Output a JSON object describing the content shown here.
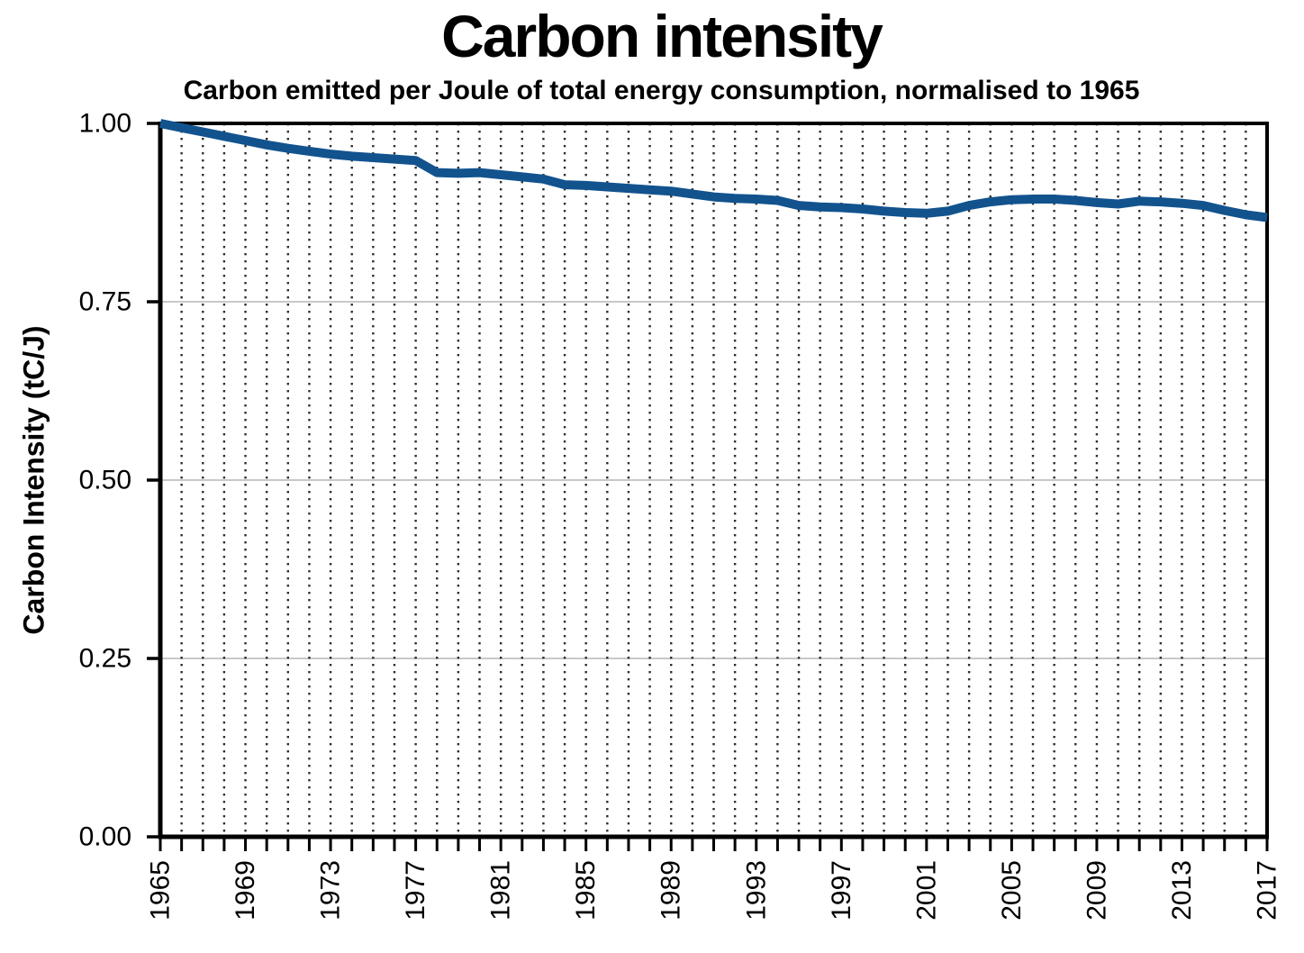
{
  "chart_data": {
    "type": "line",
    "title": "Carbon intensity",
    "subtitle": "Carbon emitted per Joule of total energy consumption, normalised to 1965",
    "xlabel": "",
    "ylabel": "Carbon Intensity (tC/J)",
    "x": [
      1965,
      1966,
      1967,
      1968,
      1969,
      1970,
      1971,
      1972,
      1973,
      1974,
      1975,
      1976,
      1977,
      1978,
      1979,
      1980,
      1981,
      1982,
      1983,
      1984,
      1985,
      1986,
      1987,
      1988,
      1989,
      1990,
      1991,
      1992,
      1993,
      1994,
      1995,
      1996,
      1997,
      1998,
      1999,
      2000,
      2001,
      2002,
      2003,
      2004,
      2005,
      2006,
      2007,
      2008,
      2009,
      2010,
      2011,
      2012,
      2013,
      2014,
      2015,
      2016,
      2017
    ],
    "values": [
      1.0,
      0.994,
      0.988,
      0.982,
      0.976,
      0.97,
      0.965,
      0.961,
      0.957,
      0.954,
      0.952,
      0.95,
      0.948,
      0.931,
      0.93,
      0.931,
      0.928,
      0.925,
      0.922,
      0.914,
      0.913,
      0.911,
      0.909,
      0.907,
      0.905,
      0.901,
      0.897,
      0.895,
      0.894,
      0.892,
      0.885,
      0.883,
      0.882,
      0.88,
      0.877,
      0.875,
      0.874,
      0.877,
      0.885,
      0.89,
      0.893,
      0.894,
      0.894,
      0.892,
      0.889,
      0.887,
      0.891,
      0.89,
      0.888,
      0.885,
      0.878,
      0.872,
      0.868
    ],
    "xlim": [
      1965,
      2017
    ],
    "ylim": [
      0.0,
      1.0
    ],
    "yticks": [
      0.0,
      0.25,
      0.5,
      0.75,
      1.0
    ],
    "ytick_labels": [
      "0.00",
      "0.25",
      "0.50",
      "0.75",
      "1.00"
    ],
    "xticks": [
      1965,
      1969,
      1973,
      1977,
      1981,
      1985,
      1989,
      1993,
      1997,
      2001,
      2005,
      2009,
      2013,
      2017
    ],
    "xtick_labels": [
      "1965",
      "1969",
      "1973",
      "1977",
      "1981",
      "1985",
      "1989",
      "1993",
      "1997",
      "2001",
      "2005",
      "2009",
      "2013",
      "2017"
    ],
    "grid": {
      "horizontal": "solid",
      "vertical": "dotted",
      "vertical_every_year": true
    },
    "legend": "none",
    "colors": {
      "line": "#12538e",
      "hgrid": "#c8c8c8",
      "vgrid": "#2e2e2e",
      "axis": "#000000",
      "text": "#000000",
      "background": "#ffffff"
    }
  }
}
